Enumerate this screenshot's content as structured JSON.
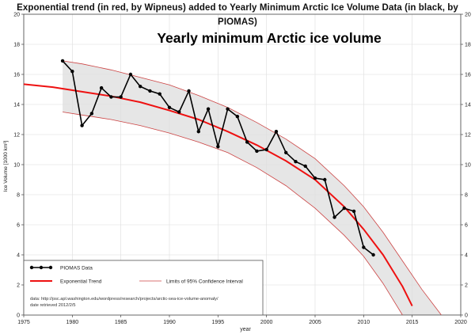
{
  "header": {
    "title": "Exponential trend (in red, by Wipneus) added to Yearly Minimum Arctic Ice Volume Data (in black, by PIOMAS)"
  },
  "chart_data": {
    "type": "line",
    "title": "Exponential trend (in red, by Wipneus) added to Yearly Minimum Arctic Ice Volume Data (in black, by PIOMAS)",
    "subtitle": "Yearly minimum Arctic ice volume",
    "xlabel": "year",
    "ylabel": "Ice Volume [1000 km³]",
    "xlim": [
      1975,
      2020
    ],
    "ylim": [
      0,
      20
    ],
    "xticks": [
      1975,
      1980,
      1985,
      1990,
      1995,
      2000,
      2005,
      2010,
      2015,
      2020
    ],
    "yticks": [
      0,
      2,
      4,
      6,
      8,
      10,
      12,
      14,
      16,
      18,
      20
    ],
    "grid": true,
    "legend_position": "bottom-left",
    "series": [
      {
        "name": "PIOMAS Data",
        "kind": "line-markers",
        "color": "#000000",
        "x": [
          1979,
          1980,
          1981,
          1982,
          1983,
          1984,
          1985,
          1986,
          1987,
          1988,
          1989,
          1990,
          1991,
          1992,
          1993,
          1994,
          1995,
          1996,
          1997,
          1998,
          1999,
          2000,
          2001,
          2002,
          2003,
          2004,
          2005,
          2006,
          2007,
          2008,
          2009,
          2010,
          2011
        ],
        "y": [
          16.9,
          16.2,
          12.6,
          13.4,
          15.1,
          14.5,
          14.5,
          16.0,
          15.2,
          14.9,
          14.7,
          13.8,
          13.5,
          14.9,
          12.2,
          13.7,
          11.2,
          13.7,
          13.2,
          11.5,
          10.9,
          11.0,
          12.2,
          10.8,
          10.2,
          9.9,
          9.1,
          9.0,
          6.5,
          7.1,
          6.9,
          4.5,
          4.0
        ]
      },
      {
        "name": "Exponential Trend",
        "kind": "line",
        "color": "#ee1111",
        "x": [
          1975,
          1978,
          1981,
          1984,
          1987,
          1990,
          1993,
          1996,
          1999,
          2002,
          2005,
          2008,
          2010,
          2012,
          2014,
          2015
        ],
        "y": [
          15.35,
          15.15,
          14.85,
          14.55,
          14.15,
          13.6,
          13.0,
          12.2,
          11.3,
          10.25,
          9.0,
          7.2,
          5.7,
          4.0,
          1.9,
          0.6
        ]
      },
      {
        "name": "Limits of 95% Confidence Interval",
        "kind": "band",
        "color": "#cc4444",
        "x": [
          1979,
          1981,
          1984,
          1987,
          1990,
          1993,
          1996,
          1999,
          2002,
          2005,
          2008,
          2010,
          2012,
          2014,
          2016,
          2018
        ],
        "upper": [
          16.9,
          16.7,
          16.3,
          15.8,
          15.3,
          14.6,
          13.8,
          12.8,
          11.7,
          10.4,
          8.6,
          7.2,
          5.5,
          3.6,
          1.7,
          0
        ],
        "lower": [
          13.5,
          13.3,
          13.0,
          12.6,
          12.1,
          11.5,
          10.8,
          9.8,
          8.6,
          7.1,
          5.3,
          3.9,
          2.1,
          0,
          null,
          null
        ]
      }
    ],
    "annotations": [
      "data: http://psc.apl.washington.edu/wordpress/research/projects/arctic-sea-ice-volume-anomaly/",
      "date retrieved 2012/2/5"
    ],
    "colors": {
      "data": "#000000",
      "trend": "#ee1111",
      "limits": "#cc4444",
      "band": "#e6e6e6",
      "grid": "#dddddd"
    }
  }
}
